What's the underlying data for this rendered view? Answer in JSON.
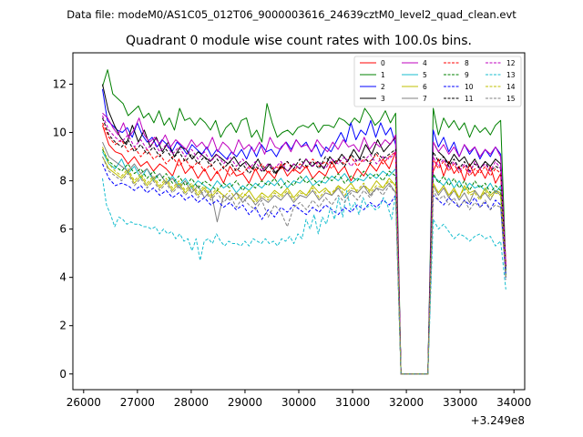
{
  "header": {
    "data_file": "Data file: modeM0/AS1C05_012T06_9000003616_24639cztM0_level2_quad_clean.evt"
  },
  "chart_data": {
    "type": "line",
    "title": "Quadrant 0 module wise count rates with 100.0s bins.",
    "xlabel": "",
    "ylabel": "",
    "x_offset_label": "+3.249e8",
    "xlim": [
      25800,
      34200
    ],
    "ylim": [
      -0.65,
      13.3
    ],
    "xticks": [
      26000,
      27000,
      28000,
      29000,
      30000,
      31000,
      32000,
      33000,
      34000
    ],
    "xtick_labels": [
      "26000",
      "27000",
      "28000",
      "29000",
      "30000",
      "31000",
      "32000",
      "33000",
      "34000"
    ],
    "yticks": [
      0,
      2,
      4,
      6,
      8,
      10,
      12
    ],
    "ytick_labels": [
      "0",
      "2",
      "4",
      "6",
      "8",
      "10",
      "12"
    ],
    "grid": false,
    "legend": {
      "placement": "top-right",
      "columns": 4
    },
    "series": [
      {
        "name": "0",
        "color": "#ff0000",
        "dash": "solid",
        "v": [
          10.3,
          9.5,
          9.2,
          9.1,
          8.7,
          9.0,
          8.6,
          8.8,
          8.4,
          8.7,
          8.5,
          8.2,
          8.9,
          8.3,
          8.6,
          8.1,
          8.5,
          8.0,
          8.4,
          7.9,
          8.6,
          8.2,
          8.3,
          7.9,
          8.5,
          8.0,
          8.4,
          8.1,
          8.7,
          8.2,
          8.5,
          8.3,
          8.6,
          8.1,
          8.4,
          8.2,
          8.8,
          8.3,
          8.6,
          8.0,
          8.5,
          8.2,
          8.7,
          8.4,
          8.9,
          8.5,
          9.2
        ],
        "gap": [
          8.4,
          8.9,
          8.2,
          8.8,
          8.3,
          8.6,
          8.0,
          8.7,
          8.2,
          8.5,
          8.1,
          8.6,
          7.9,
          8.3,
          4.6
        ]
      },
      {
        "name": "1",
        "color": "#008000",
        "dash": "solid",
        "v": [
          11.9,
          12.6,
          11.6,
          11.4,
          11.2,
          10.7,
          10.9,
          11.1,
          10.6,
          10.8,
          10.4,
          10.9,
          10.3,
          10.6,
          10.1,
          11.0,
          10.5,
          10.6,
          10.3,
          10.6,
          10.4,
          10.1,
          10.5,
          9.8,
          10.2,
          10.4,
          10.0,
          10.5,
          10.6,
          9.8,
          10.1,
          9.6,
          11.2,
          10.4,
          9.8,
          10.0,
          10.1,
          9.9,
          10.2,
          10.3,
          10.2,
          10.4,
          10.0,
          10.3,
          10.3,
          10.2,
          10.6,
          10.5,
          10.3,
          10.6,
          10.4,
          11.0,
          10.7,
          10.3,
          10.5,
          10.9,
          10.4,
          10.8
        ],
        "gap": [
          11.0,
          9.9,
          10.6,
          10.2,
          10.5,
          10.1,
          10.4,
          9.8,
          10.3,
          10.0,
          10.2,
          9.9,
          10.3,
          10.5,
          4.4
        ]
      },
      {
        "name": "2",
        "color": "#0000ff",
        "dash": "solid",
        "v": [
          11.8,
          10.5,
          10.3,
          10.1,
          10.0,
          10.2,
          9.8,
          10.4,
          9.9,
          9.6,
          9.8,
          9.4,
          9.7,
          9.5,
          9.2,
          9.6,
          9.4,
          9.1,
          9.5,
          9.3,
          9.1,
          9.4,
          9.0,
          9.3,
          9.1,
          8.9,
          9.2,
          9.0,
          9.3,
          8.9,
          9.4,
          9.0,
          9.5,
          9.2,
          9.3,
          9.0,
          9.4,
          9.6,
          9.3,
          9.7,
          9.4,
          9.6,
          9.2,
          9.5,
          9.0,
          9.4,
          9.2,
          9.6,
          10.0,
          9.6,
          10.4,
          9.7,
          10.1,
          9.9,
          10.5,
          9.8,
          10.4,
          9.9,
          10.2,
          9.5
        ],
        "gap": [
          10.1,
          9.4,
          9.8,
          9.2,
          9.6,
          9.0,
          9.5,
          9.1,
          9.4,
          8.9,
          9.3,
          9.0,
          9.4,
          9.1,
          4.2
        ]
      },
      {
        "name": "3",
        "color": "#000000",
        "dash": "solid",
        "v": [
          12.0,
          10.9,
          10.3,
          9.8,
          9.5,
          10.3,
          9.6,
          10.1,
          9.4,
          9.8,
          9.2,
          9.6,
          9.0,
          9.4,
          9.3,
          8.9,
          9.2,
          9.0,
          8.8,
          9.1,
          8.9,
          8.7,
          9.0,
          8.6,
          8.8,
          8.5,
          8.9,
          8.4,
          8.7,
          8.3,
          8.6,
          8.4,
          8.7,
          8.5,
          8.9,
          8.6,
          8.8,
          8.5,
          9.0,
          8.7,
          9.1,
          8.8,
          9.3,
          8.9,
          9.5,
          9.1,
          9.7,
          9.2,
          9.5,
          9.8
        ],
        "gap": [
          9.6,
          9.2,
          9.0,
          8.7,
          9.1,
          8.8,
          9.0,
          8.6,
          8.9,
          8.5,
          8.8,
          8.6,
          8.9,
          8.7,
          4.3
        ]
      },
      {
        "name": "4",
        "color": "#bf00bf",
        "dash": "solid",
        "v": [
          10.8,
          10.6,
          10.2,
          9.9,
          10.4,
          9.8,
          10.1,
          10.6,
          9.9,
          9.6,
          9.8,
          9.5,
          9.9,
          9.4,
          9.7,
          9.5,
          9.3,
          9.7,
          9.4,
          9.6,
          9.3,
          9.8,
          9.2,
          9.6,
          9.4,
          9.1,
          9.7,
          9.3,
          9.5,
          9.2,
          9.6,
          9.1,
          9.8,
          9.4,
          9.3,
          9.6,
          9.2,
          9.7,
          9.4,
          9.5,
          9.2,
          9.7,
          9.4,
          9.2,
          9.6,
          9.3,
          9.7,
          9.4,
          9.5,
          9.2,
          9.8,
          9.3,
          9.6,
          9.4,
          9.7,
          9.5,
          9.9
        ],
        "gap": [
          9.6,
          9.2,
          9.5,
          9.1,
          9.4,
          9.0,
          9.5,
          9.2,
          9.4,
          9.0,
          9.3,
          9.1,
          9.4,
          9.0,
          4.4
        ]
      },
      {
        "name": "5",
        "color": "#17becf",
        "dash": "solid",
        "v": [
          9.2,
          8.7,
          8.5,
          8.9,
          8.3,
          8.6,
          8.1,
          8.5,
          8.0,
          8.3,
          7.9,
          8.2,
          7.8,
          8.1,
          7.7,
          8.0,
          7.8,
          7.6,
          8.0,
          7.7,
          7.9,
          7.5,
          7.8,
          7.6,
          7.9,
          7.7,
          8.0,
          7.8,
          8.1,
          7.7,
          8.0,
          7.9,
          8.2,
          7.8,
          8.0,
          7.9,
          8.2,
          8.0,
          8.3,
          7.9,
          8.1,
          8.0,
          8.3,
          8.1,
          8.4,
          8.2,
          8.5
        ],
        "gap": [
          8.2,
          8.0,
          7.8,
          8.1,
          7.7,
          8.0,
          7.6,
          7.9,
          7.7,
          7.8,
          7.6,
          7.9,
          7.5,
          7.8,
          4.1
        ]
      },
      {
        "name": "6",
        "color": "#bfbf00",
        "dash": "solid",
        "v": [
          9.0,
          8.5,
          8.3,
          8.1,
          8.4,
          7.9,
          8.2,
          7.8,
          8.1,
          7.7,
          8.0,
          7.6,
          7.9,
          7.5,
          7.8,
          7.4,
          7.7,
          7.3,
          7.6,
          7.4,
          7.2,
          7.5,
          7.3,
          7.6,
          7.2,
          7.5,
          7.3,
          7.6,
          7.4,
          7.7,
          7.3,
          7.6,
          7.4,
          7.8,
          7.5,
          7.7,
          7.4,
          7.8,
          7.6,
          7.9,
          7.5,
          7.8,
          7.6,
          8.0,
          7.7,
          8.1,
          7.8
        ],
        "gap": [
          7.9,
          7.5,
          7.8,
          7.4,
          7.7,
          7.3,
          7.8,
          7.5,
          7.6,
          7.3,
          7.7,
          7.4,
          7.6,
          7.5,
          4.0
        ]
      },
      {
        "name": "7",
        "color": "#808080",
        "dash": "solid",
        "v": [
          9.6,
          9.0,
          8.8,
          8.6,
          8.4,
          8.7,
          8.3,
          8.5,
          8.1,
          8.3,
          7.9,
          8.1,
          7.7,
          8.0,
          7.5,
          7.8,
          7.3,
          7.6,
          6.3,
          7.4,
          7.2,
          7.5,
          7.1,
          7.4,
          7.0,
          7.3,
          7.1,
          7.4,
          7.2,
          7.5,
          7.1,
          7.4,
          7.3,
          7.6,
          7.2,
          7.5,
          7.4,
          7.7,
          7.3,
          7.6,
          7.5,
          7.8,
          7.4,
          7.7,
          7.6,
          7.9,
          7.5
        ],
        "gap": [
          7.8,
          7.4,
          7.7,
          7.3,
          7.6,
          7.2,
          7.5,
          7.1,
          7.6,
          7.3,
          7.5,
          7.2,
          7.6,
          7.4,
          4.0
        ]
      },
      {
        "name": "8",
        "color": "#ff0000",
        "dash": "dashed",
        "v": [
          10.4,
          9.8,
          9.5,
          9.7,
          9.2,
          9.4,
          9.0,
          9.3,
          8.9,
          9.1,
          8.7,
          9.0,
          8.6,
          8.9,
          8.5,
          8.8,
          8.4,
          8.7,
          8.3,
          8.6,
          8.2,
          8.5,
          8.3,
          8.6,
          8.4,
          8.7,
          8.3,
          8.6,
          8.5,
          8.8,
          8.4,
          8.7,
          8.5,
          8.9,
          8.6,
          8.8,
          8.5,
          8.9,
          8.7,
          9.0,
          8.6,
          8.9,
          8.8,
          9.1,
          8.7,
          9.0,
          9.2
        ],
        "gap": [
          8.9,
          8.5,
          8.8,
          8.4,
          8.7,
          8.3,
          8.6,
          8.2,
          8.5,
          8.3,
          8.6,
          8.2,
          8.5,
          8.3,
          4.5
        ]
      },
      {
        "name": "9",
        "color": "#008000",
        "dash": "dashed",
        "v": [
          9.3,
          8.8,
          8.6,
          8.4,
          8.7,
          8.3,
          8.5,
          8.1,
          8.4,
          8.0,
          8.3,
          7.9,
          8.2,
          7.8,
          8.1,
          7.7,
          8.0,
          7.8,
          7.6,
          7.9,
          7.7,
          8.0,
          7.6,
          7.9,
          7.7,
          8.0,
          7.8,
          8.1,
          7.7,
          8.0,
          7.8,
          8.2,
          7.9,
          8.1,
          7.8,
          8.2,
          8.0,
          8.3,
          7.9,
          8.2,
          8.0,
          8.4,
          8.1,
          8.3,
          8.0,
          8.4,
          8.2
        ],
        "gap": [
          8.3,
          7.9,
          8.2,
          7.8,
          8.1,
          7.7,
          8.0,
          7.6,
          8.0,
          7.7,
          7.9,
          7.5,
          7.8,
          7.6,
          4.1
        ]
      },
      {
        "name": "10",
        "color": "#0000ff",
        "dash": "dashed",
        "v": [
          8.7,
          8.1,
          7.8,
          7.9,
          7.8,
          7.6,
          7.8,
          7.5,
          7.7,
          7.4,
          7.6,
          7.3,
          7.5,
          7.2,
          7.4,
          7.1,
          7.3,
          7.0,
          7.2,
          6.9,
          7.1,
          6.8,
          7.0,
          6.6,
          6.9,
          6.4,
          6.8,
          6.5,
          6.9,
          6.7,
          7.0,
          6.8,
          6.6,
          6.9,
          6.7,
          7.0,
          6.8,
          6.6,
          6.9,
          6.7,
          7.0,
          6.8,
          7.1,
          6.9,
          7.2,
          7.0,
          7.4
        ],
        "gap": [
          7.4,
          7.2,
          7.0,
          7.3,
          7.1,
          6.9,
          7.2,
          7.0,
          7.3,
          6.9,
          7.1,
          6.8,
          7.2,
          7.0,
          4.0
        ]
      },
      {
        "name": "11",
        "color": "#000000",
        "dash": "dashed",
        "v": [
          10.6,
          9.9,
          9.6,
          9.4,
          9.7,
          9.2,
          9.5,
          9.1,
          9.4,
          9.0,
          9.3,
          8.9,
          9.2,
          8.8,
          9.1,
          8.7,
          9.0,
          8.6,
          8.9,
          8.5,
          8.8,
          8.4,
          8.7,
          8.3,
          8.6,
          8.4,
          8.7,
          8.3,
          8.6,
          8.8,
          8.5,
          8.9,
          8.6,
          8.8,
          8.5,
          9.0,
          8.7,
          8.9,
          8.6,
          9.1,
          8.8,
          9.0,
          8.7,
          9.2,
          8.9,
          9.1,
          9.3
        ],
        "gap": [
          9.2,
          8.8,
          9.0,
          8.6,
          8.9,
          8.5,
          8.8,
          8.4,
          8.7,
          8.5,
          8.8,
          8.4,
          8.6,
          8.5,
          4.4
        ]
      },
      {
        "name": "12",
        "color": "#bf00bf",
        "dash": "dashed",
        "v": [
          10.7,
          10.1,
          9.8,
          9.6,
          9.9,
          9.4,
          9.7,
          9.3,
          9.6,
          9.2,
          9.5,
          9.1,
          9.4,
          9.0,
          9.3,
          8.9,
          9.2,
          8.8,
          9.1,
          8.7,
          9.0,
          8.6,
          8.9,
          8.5,
          8.8,
          8.4,
          8.7,
          8.5,
          8.8,
          8.4,
          8.7,
          8.5,
          8.9,
          8.6,
          8.8,
          8.5,
          8.9,
          8.7,
          9.0,
          8.6,
          8.9,
          8.8,
          9.1,
          8.7,
          9.0,
          8.9,
          9.2
        ],
        "gap": [
          9.0,
          8.6,
          8.9,
          8.5,
          8.8,
          8.4,
          8.7,
          8.3,
          8.8,
          8.5,
          8.7,
          8.4,
          8.8,
          8.5,
          4.5
        ]
      },
      {
        "name": "13",
        "color": "#17becf",
        "dash": "dashed",
        "v": [
          8.1,
          7.0,
          6.6,
          6.1,
          6.5,
          6.4,
          6.2,
          6.3,
          6.2,
          6.2,
          6.1,
          6.1,
          6.0,
          6.1,
          5.8,
          6.0,
          5.8,
          5.9,
          5.6,
          5.8,
          5.5,
          5.6,
          5.1,
          5.6,
          4.7,
          5.5,
          5.6,
          5.4,
          5.8,
          5.5,
          5.3,
          5.5,
          5.4,
          5.4,
          5.3,
          5.5,
          5.3,
          5.6,
          5.5,
          5.4,
          5.6,
          5.4,
          5.5,
          5.3,
          5.6,
          5.5,
          5.7,
          5.4,
          5.8,
          5.6,
          6.4,
          6.0,
          6.6,
          5.8,
          6.5,
          6.2,
          6.9,
          6.4,
          7.3,
          6.5,
          7.6,
          6.8,
          7.1,
          6.6,
          7.3,
          6.9,
          7.0,
          6.8,
          6.9,
          7.3,
          7.0,
          6.4,
          7.4
        ],
        "gap": [
          6.4,
          6.0,
          6.2,
          5.9,
          5.6,
          5.8,
          5.7,
          5.5,
          5.7,
          5.8,
          5.6,
          5.7,
          5.3,
          5.5,
          3.5
        ]
      },
      {
        "name": "14",
        "color": "#bfbf00",
        "dash": "dashed",
        "v": [
          9.4,
          8.7,
          8.4,
          8.2,
          8.5,
          8.0,
          8.3,
          7.9,
          8.2,
          7.8,
          8.1,
          7.7,
          8.0,
          7.6,
          7.9,
          7.5,
          7.8,
          7.4,
          7.7,
          7.3,
          7.6,
          7.2,
          7.5,
          7.3,
          7.1,
          7.4,
          7.2,
          7.5,
          7.3,
          7.6,
          7.2,
          7.5,
          7.4,
          7.7,
          7.3,
          7.6,
          7.5,
          7.8,
          7.4,
          7.7,
          7.6,
          7.9,
          7.5,
          7.8,
          7.7,
          8.0,
          7.8
        ],
        "gap": [
          7.9,
          7.5,
          7.8,
          7.4,
          7.6,
          7.3,
          7.7,
          7.4,
          7.5,
          7.2,
          7.6,
          7.3,
          7.5,
          7.4,
          4.0
        ]
      },
      {
        "name": "15",
        "color": "#808080",
        "dash": "dashed",
        "v": [
          9.0,
          8.4,
          8.2,
          8.0,
          8.3,
          7.8,
          8.1,
          7.7,
          8.0,
          7.6,
          7.9,
          7.5,
          7.8,
          7.4,
          7.7,
          7.3,
          7.6,
          7.2,
          7.5,
          7.1,
          7.4,
          6.9,
          7.3,
          7.0,
          6.8,
          7.2,
          6.5,
          7.0,
          6.7,
          6.1,
          6.9,
          7.1,
          6.8,
          7.2,
          6.9,
          7.3,
          7.0,
          7.4,
          7.1,
          7.5,
          7.2,
          7.6,
          7.3,
          7.7,
          7.4,
          7.8,
          7.5
        ],
        "gap": [
          7.6,
          7.2,
          7.4,
          7.0,
          7.3,
          6.9,
          7.2,
          6.8,
          7.1,
          6.9,
          7.2,
          6.8,
          7.0,
          6.9,
          3.9
        ]
      }
    ],
    "segments": {
      "first_start": 26350,
      "first_end": 31800,
      "zero_start": 31900,
      "zero_end": 32400,
      "second_start": 32500,
      "second_end": 33850
    }
  }
}
